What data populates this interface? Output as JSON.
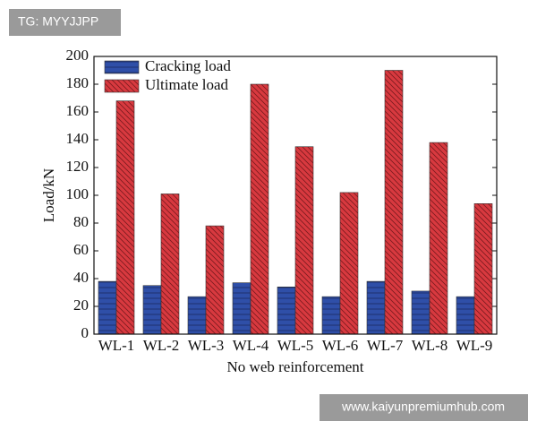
{
  "chart_data": {
    "type": "bar",
    "xlabel": "No web reinforcement",
    "ylabel": "Load/kN",
    "categories": [
      "WL-1",
      "WL-2",
      "WL-3",
      "WL-4",
      "WL-5",
      "WL-6",
      "WL-7",
      "WL-8",
      "WL-9"
    ],
    "series": [
      {
        "name": "Cracking load",
        "color": "#2f4fa8",
        "values": [
          38,
          35,
          27,
          37,
          34,
          27,
          38,
          31,
          27
        ]
      },
      {
        "name": "Ultimate load",
        "color": "#d8393f",
        "values": [
          168,
          101,
          78,
          180,
          135,
          102,
          190,
          138,
          94
        ]
      }
    ],
    "ylim": [
      0,
      200
    ],
    "yticks": [
      0,
      20,
      40,
      60,
      80,
      100,
      120,
      140,
      160,
      180,
      200
    ],
    "legend": "upper left"
  },
  "watermarks": {
    "top": "TG: MYYJJPP",
    "bottom": "www.kaiyunpremiumhub.com"
  }
}
